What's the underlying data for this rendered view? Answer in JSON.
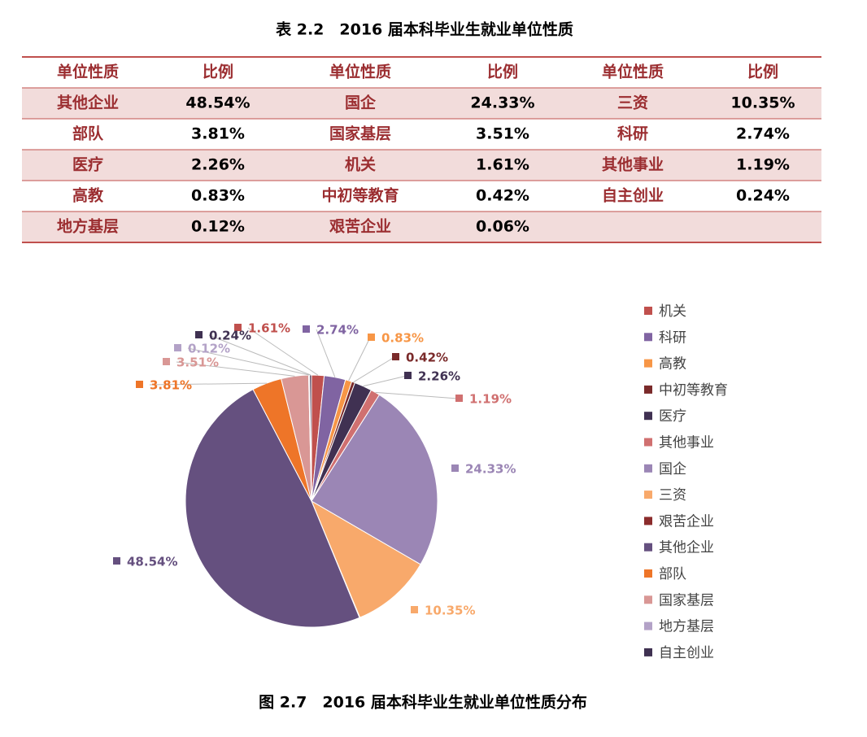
{
  "table": {
    "title": "表 2.2　2016 届本科毕业生就业单位性质",
    "header": [
      "单位性质",
      "比例",
      "单位性质",
      "比例",
      "单位性质",
      "比例"
    ],
    "rows": [
      [
        "其他企业",
        "48.54%",
        "国企",
        "24.33%",
        "三资",
        "10.35%"
      ],
      [
        "部队",
        "3.81%",
        "国家基层",
        "3.51%",
        "科研",
        "2.74%"
      ],
      [
        "医疗",
        "2.26%",
        "机关",
        "1.61%",
        "其他事业",
        "1.19%"
      ],
      [
        "高教",
        "0.83%",
        "中初等教育",
        "0.42%",
        "自主创业",
        "0.24%"
      ],
      [
        "地方基层",
        "0.12%",
        "艰苦企业",
        "0.06%"
      ]
    ]
  },
  "chart_data": {
    "type": "pie",
    "caption": "图 2.7　2016 届本科毕业生就业单位性质分布",
    "categories": [
      "机关",
      "科研",
      "高教",
      "中初等教育",
      "医疗",
      "其他事业",
      "国企",
      "三资",
      "艰苦企业",
      "其他企业",
      "部队",
      "国家基层",
      "地方基层",
      "自主创业"
    ],
    "values": [
      1.61,
      2.74,
      0.83,
      0.42,
      2.26,
      1.19,
      24.33,
      10.35,
      0.06,
      48.54,
      3.81,
      3.51,
      0.12,
      0.24
    ],
    "value_labels": [
      "1.61%",
      "2.74%",
      "0.83%",
      "0.42%",
      "2.26%",
      "1.19%",
      "24.33%",
      "10.35%",
      null,
      "48.54%",
      "3.81%",
      "3.51%",
      "0.12%",
      "0.24%"
    ],
    "colors": [
      "#c0504d",
      "#8064a2",
      "#f79646",
      "#7a2a2a",
      "#403152",
      "#d07070",
      "#9b86b5",
      "#f8a96b",
      "#8b2c2c",
      "#65507f",
      "#ee7528",
      "#d99795",
      "#b3a2c7",
      "#3f3151"
    ]
  }
}
